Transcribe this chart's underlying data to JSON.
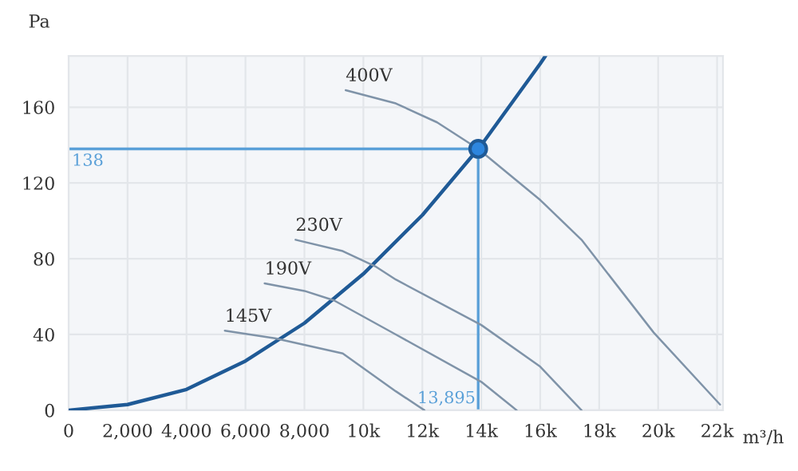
{
  "chart_data": {
    "type": "line",
    "xlabel": "m³/h",
    "ylabel": "Pa",
    "xlim": [
      0,
      22200
    ],
    "ylim": [
      0,
      187
    ],
    "xticks": [
      0,
      {
        "value": 2000,
        "label": "2,000"
      },
      {
        "value": 4000,
        "label": "4,000"
      },
      {
        "value": 6000,
        "label": "6,000"
      },
      {
        "value": 8000,
        "label": "8,000"
      },
      {
        "value": 10000,
        "label": "10k"
      },
      {
        "value": 12000,
        "label": "12k"
      },
      {
        "value": 14000,
        "label": "14k"
      },
      {
        "value": 16000,
        "label": "16k"
      },
      {
        "value": 18000,
        "label": "18k"
      },
      {
        "value": 20000,
        "label": "20k"
      },
      {
        "value": 22000,
        "label": "22k"
      }
    ],
    "yticks": [
      0,
      40,
      80,
      120,
      160
    ],
    "grid": true,
    "legend": false,
    "series": [
      {
        "color": "#1f5a96",
        "x": [
          0,
          2000,
          4000,
          6000,
          8000,
          10000,
          12000,
          13895,
          14000,
          16000,
          16175
        ],
        "values": [
          0,
          3,
          11,
          26,
          46,
          72,
          103,
          138,
          140,
          183,
          187
        ]
      },
      {
        "name": "400V",
        "color": "#7f93a8",
        "x": [
          9400,
          11100,
          12500,
          13895,
          16000,
          17400,
          19850,
          22100
        ],
        "values": [
          169,
          162,
          152,
          138,
          111,
          90,
          41,
          3
        ]
      },
      {
        "name": "230V",
        "color": "#7f93a8",
        "x": [
          7700,
          9300,
          10400,
          11100,
          14000,
          16000,
          17400
        ],
        "values": [
          90,
          84,
          76,
          69,
          45,
          23,
          0
        ]
      },
      {
        "name": "190V",
        "color": "#7f93a8",
        "x": [
          6650,
          8000,
          9000,
          11100,
          14000,
          15200
        ],
        "values": [
          67,
          63,
          58,
          40,
          15,
          0
        ]
      },
      {
        "name": "145V",
        "color": "#7f93a8",
        "x": [
          5300,
          7000,
          9300,
          11100,
          12070
        ],
        "values": [
          42,
          38,
          30,
          10,
          0
        ]
      },
      {
        "type": "scatter",
        "color": "#2e86de",
        "marker": "circle",
        "x": [
          13895
        ],
        "values": [
          138
        ]
      }
    ],
    "ref_lines": [
      {
        "axis": "y",
        "value": 138,
        "label": "138",
        "color": "#5aa0d8"
      },
      {
        "axis": "x",
        "value": 13895,
        "label": "13,895",
        "color": "#5aa0d8"
      }
    ]
  }
}
